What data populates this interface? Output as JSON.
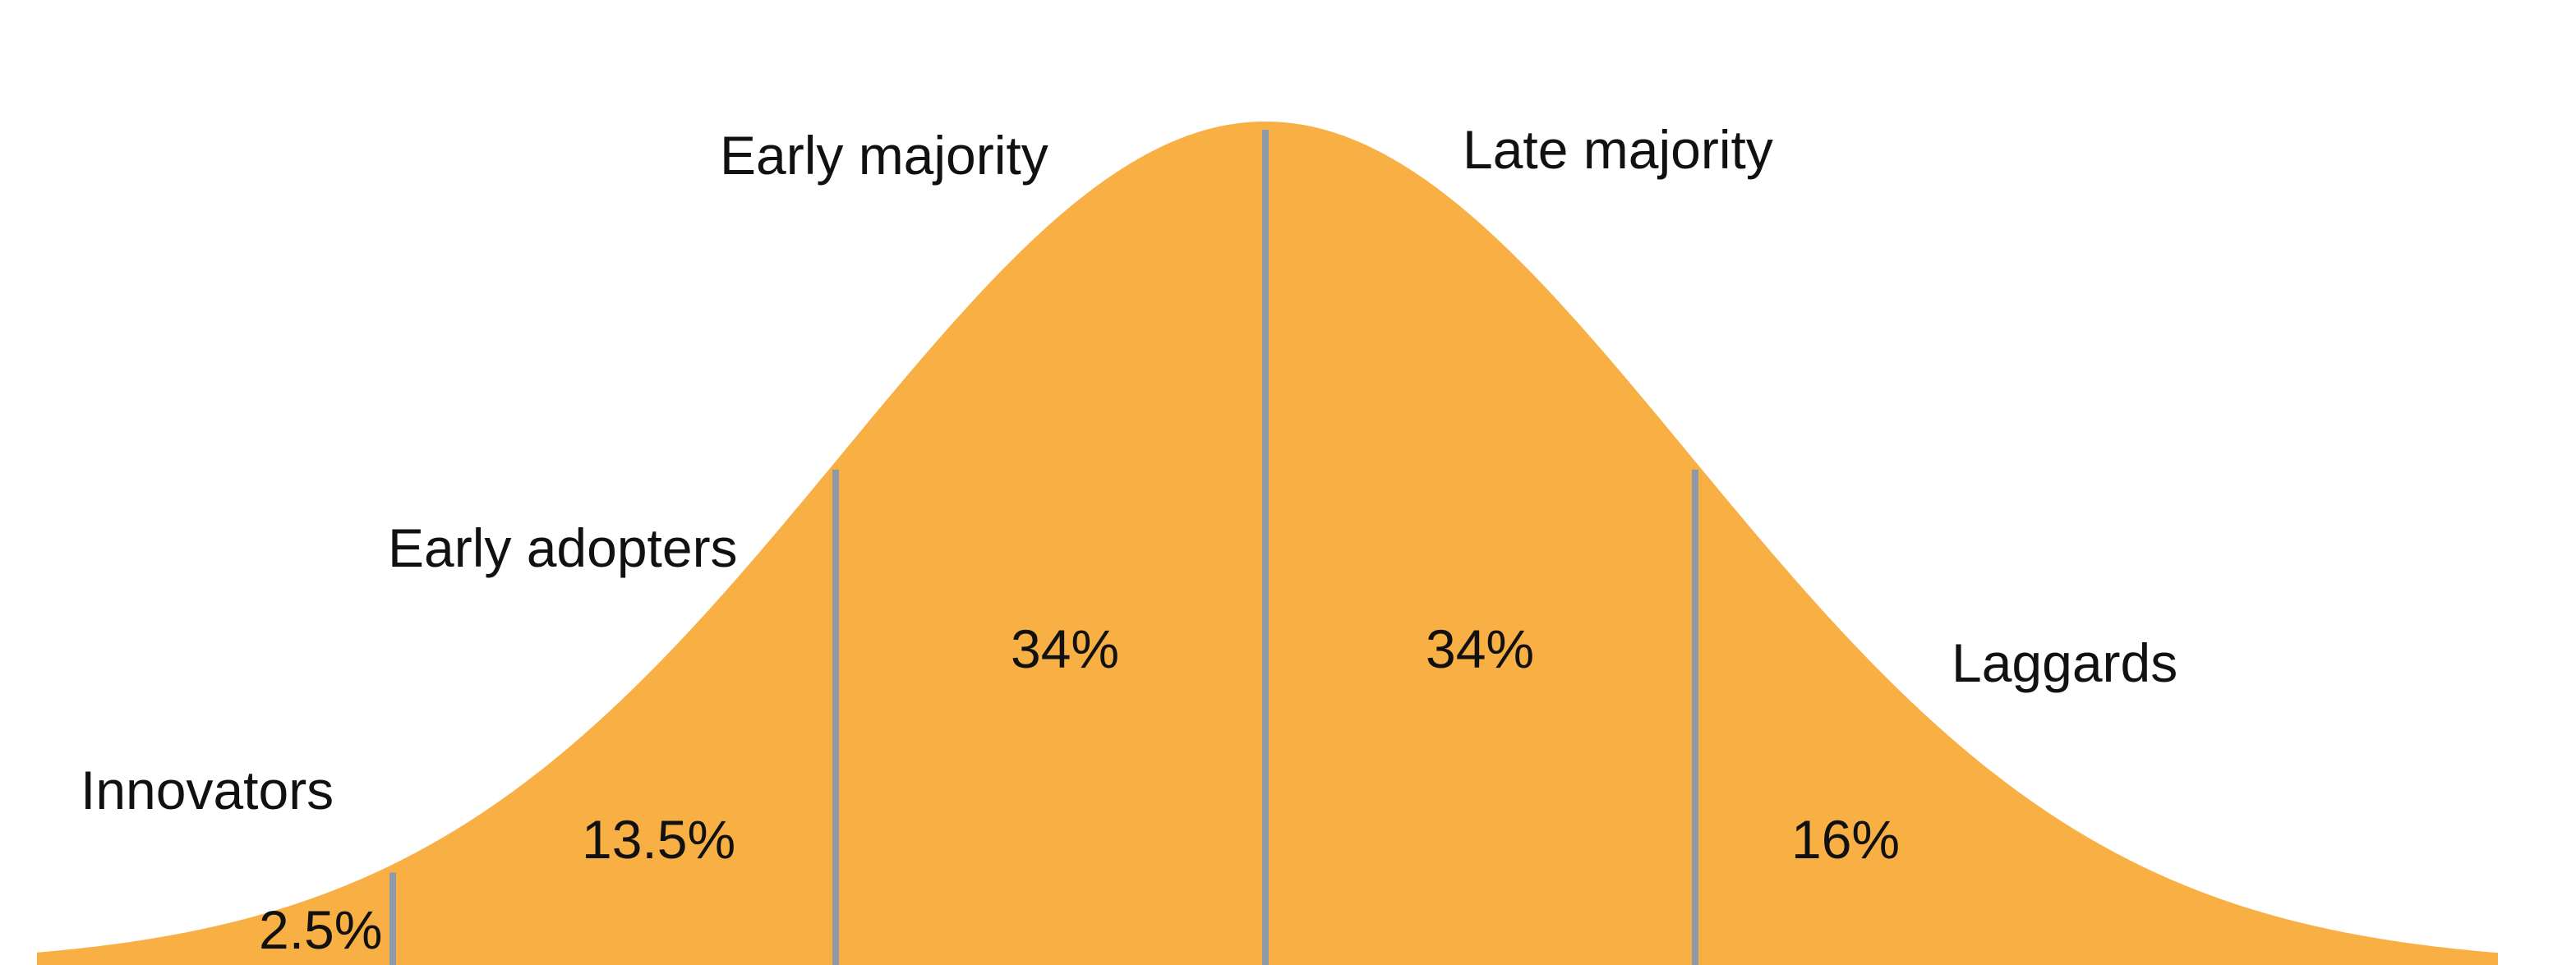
{
  "colors": {
    "curve_fill": "#F8AF43",
    "divider": "#8E9AAA",
    "text": "#111111",
    "background": "#FFFFFF"
  },
  "segments": [
    {
      "id": "innovators",
      "label": "Innovators",
      "percent": "2.5%"
    },
    {
      "id": "early-adopters",
      "label": "Early adopters",
      "percent": "13.5%"
    },
    {
      "id": "early-majority",
      "label": "Early majority",
      "percent": "34%"
    },
    {
      "id": "late-majority",
      "label": "Late majority",
      "percent": "34%"
    },
    {
      "id": "laggards",
      "label": "Laggards",
      "percent": "16%"
    }
  ]
}
